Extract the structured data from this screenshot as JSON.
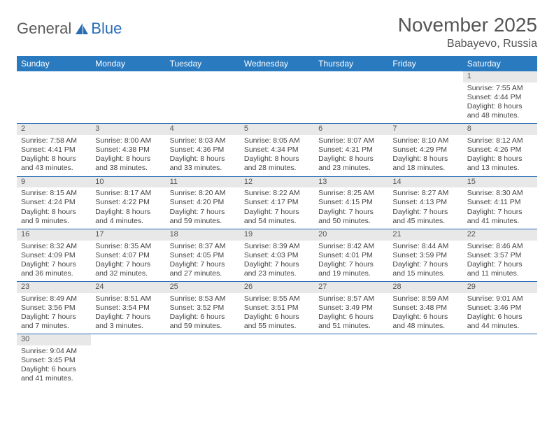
{
  "logo": {
    "text1": "General",
    "text2": "Blue"
  },
  "title": "November 2025",
  "location": "Babayevo, Russia",
  "weekdays": [
    "Sunday",
    "Monday",
    "Tuesday",
    "Wednesday",
    "Thursday",
    "Friday",
    "Saturday"
  ],
  "colors": {
    "header_bg": "#2a7ac0",
    "header_text": "#ffffff",
    "daynum_bg": "#e8e8e8",
    "cell_border": "#2a6db5",
    "text": "#444444",
    "logo_accent": "#2a6db5"
  },
  "weeks": [
    [
      null,
      null,
      null,
      null,
      null,
      null,
      {
        "n": "1",
        "sr": "Sunrise: 7:55 AM",
        "ss": "Sunset: 4:44 PM",
        "dl": "Daylight: 8 hours and 48 minutes."
      }
    ],
    [
      {
        "n": "2",
        "sr": "Sunrise: 7:58 AM",
        "ss": "Sunset: 4:41 PM",
        "dl": "Daylight: 8 hours and 43 minutes."
      },
      {
        "n": "3",
        "sr": "Sunrise: 8:00 AM",
        "ss": "Sunset: 4:38 PM",
        "dl": "Daylight: 8 hours and 38 minutes."
      },
      {
        "n": "4",
        "sr": "Sunrise: 8:03 AM",
        "ss": "Sunset: 4:36 PM",
        "dl": "Daylight: 8 hours and 33 minutes."
      },
      {
        "n": "5",
        "sr": "Sunrise: 8:05 AM",
        "ss": "Sunset: 4:34 PM",
        "dl": "Daylight: 8 hours and 28 minutes."
      },
      {
        "n": "6",
        "sr": "Sunrise: 8:07 AM",
        "ss": "Sunset: 4:31 PM",
        "dl": "Daylight: 8 hours and 23 minutes."
      },
      {
        "n": "7",
        "sr": "Sunrise: 8:10 AM",
        "ss": "Sunset: 4:29 PM",
        "dl": "Daylight: 8 hours and 18 minutes."
      },
      {
        "n": "8",
        "sr": "Sunrise: 8:12 AM",
        "ss": "Sunset: 4:26 PM",
        "dl": "Daylight: 8 hours and 13 minutes."
      }
    ],
    [
      {
        "n": "9",
        "sr": "Sunrise: 8:15 AM",
        "ss": "Sunset: 4:24 PM",
        "dl": "Daylight: 8 hours and 9 minutes."
      },
      {
        "n": "10",
        "sr": "Sunrise: 8:17 AM",
        "ss": "Sunset: 4:22 PM",
        "dl": "Daylight: 8 hours and 4 minutes."
      },
      {
        "n": "11",
        "sr": "Sunrise: 8:20 AM",
        "ss": "Sunset: 4:20 PM",
        "dl": "Daylight: 7 hours and 59 minutes."
      },
      {
        "n": "12",
        "sr": "Sunrise: 8:22 AM",
        "ss": "Sunset: 4:17 PM",
        "dl": "Daylight: 7 hours and 54 minutes."
      },
      {
        "n": "13",
        "sr": "Sunrise: 8:25 AM",
        "ss": "Sunset: 4:15 PM",
        "dl": "Daylight: 7 hours and 50 minutes."
      },
      {
        "n": "14",
        "sr": "Sunrise: 8:27 AM",
        "ss": "Sunset: 4:13 PM",
        "dl": "Daylight: 7 hours and 45 minutes."
      },
      {
        "n": "15",
        "sr": "Sunrise: 8:30 AM",
        "ss": "Sunset: 4:11 PM",
        "dl": "Daylight: 7 hours and 41 minutes."
      }
    ],
    [
      {
        "n": "16",
        "sr": "Sunrise: 8:32 AM",
        "ss": "Sunset: 4:09 PM",
        "dl": "Daylight: 7 hours and 36 minutes."
      },
      {
        "n": "17",
        "sr": "Sunrise: 8:35 AM",
        "ss": "Sunset: 4:07 PM",
        "dl": "Daylight: 7 hours and 32 minutes."
      },
      {
        "n": "18",
        "sr": "Sunrise: 8:37 AM",
        "ss": "Sunset: 4:05 PM",
        "dl": "Daylight: 7 hours and 27 minutes."
      },
      {
        "n": "19",
        "sr": "Sunrise: 8:39 AM",
        "ss": "Sunset: 4:03 PM",
        "dl": "Daylight: 7 hours and 23 minutes."
      },
      {
        "n": "20",
        "sr": "Sunrise: 8:42 AM",
        "ss": "Sunset: 4:01 PM",
        "dl": "Daylight: 7 hours and 19 minutes."
      },
      {
        "n": "21",
        "sr": "Sunrise: 8:44 AM",
        "ss": "Sunset: 3:59 PM",
        "dl": "Daylight: 7 hours and 15 minutes."
      },
      {
        "n": "22",
        "sr": "Sunrise: 8:46 AM",
        "ss": "Sunset: 3:57 PM",
        "dl": "Daylight: 7 hours and 11 minutes."
      }
    ],
    [
      {
        "n": "23",
        "sr": "Sunrise: 8:49 AM",
        "ss": "Sunset: 3:56 PM",
        "dl": "Daylight: 7 hours and 7 minutes."
      },
      {
        "n": "24",
        "sr": "Sunrise: 8:51 AM",
        "ss": "Sunset: 3:54 PM",
        "dl": "Daylight: 7 hours and 3 minutes."
      },
      {
        "n": "25",
        "sr": "Sunrise: 8:53 AM",
        "ss": "Sunset: 3:52 PM",
        "dl": "Daylight: 6 hours and 59 minutes."
      },
      {
        "n": "26",
        "sr": "Sunrise: 8:55 AM",
        "ss": "Sunset: 3:51 PM",
        "dl": "Daylight: 6 hours and 55 minutes."
      },
      {
        "n": "27",
        "sr": "Sunrise: 8:57 AM",
        "ss": "Sunset: 3:49 PM",
        "dl": "Daylight: 6 hours and 51 minutes."
      },
      {
        "n": "28",
        "sr": "Sunrise: 8:59 AM",
        "ss": "Sunset: 3:48 PM",
        "dl": "Daylight: 6 hours and 48 minutes."
      },
      {
        "n": "29",
        "sr": "Sunrise: 9:01 AM",
        "ss": "Sunset: 3:46 PM",
        "dl": "Daylight: 6 hours and 44 minutes."
      }
    ],
    [
      {
        "n": "30",
        "sr": "Sunrise: 9:04 AM",
        "ss": "Sunset: 3:45 PM",
        "dl": "Daylight: 6 hours and 41 minutes."
      },
      null,
      null,
      null,
      null,
      null,
      null
    ]
  ]
}
